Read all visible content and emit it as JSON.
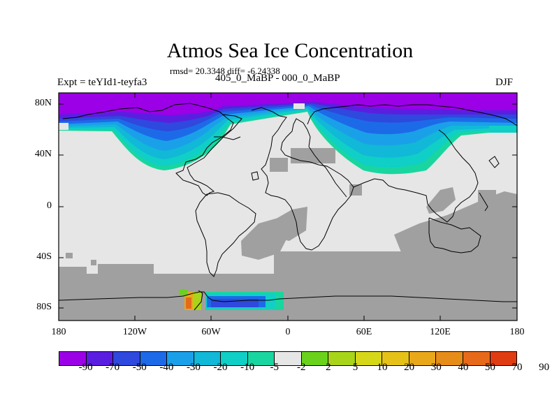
{
  "header": {
    "title": "Atmos Sea Ice Concentration",
    "stats": "rmsd= 20.3348 diff= -6.24338",
    "experiment": "Expt = teYId1-teyfa3",
    "periods": "405_0_MaBP - 000_0_MaBP",
    "season": "DJF"
  },
  "axes": {
    "lat_labels": [
      "80N",
      "40N",
      "0",
      "40S",
      "80S"
    ],
    "lon_labels": [
      "180",
      "120W",
      "60W",
      "0",
      "60E",
      "120E",
      "180"
    ]
  },
  "colorbar": {
    "colors": [
      "#9b00e6",
      "#5a1ee0",
      "#2f48dd",
      "#1d6ae8",
      "#1aa0e8",
      "#11b8d7",
      "#0fcfc6",
      "#19d6a0",
      "#e6e6e6",
      "#6ad21b",
      "#a8d41a",
      "#d7d71a",
      "#e6c218",
      "#e8a81a",
      "#e68c18",
      "#e66a1a",
      "#e03c12"
    ],
    "labels": [
      "-90",
      "-70",
      "-50",
      "-40",
      "-30",
      "-20",
      "-10",
      "-5",
      "-2",
      "2",
      "5",
      "10",
      "20",
      "30",
      "40",
      "50",
      "70",
      "90"
    ]
  },
  "map_colors": {
    "no_change": "#e6e6e6",
    "land_masked": "#a0a0a0",
    "coastline": "#000000"
  }
}
